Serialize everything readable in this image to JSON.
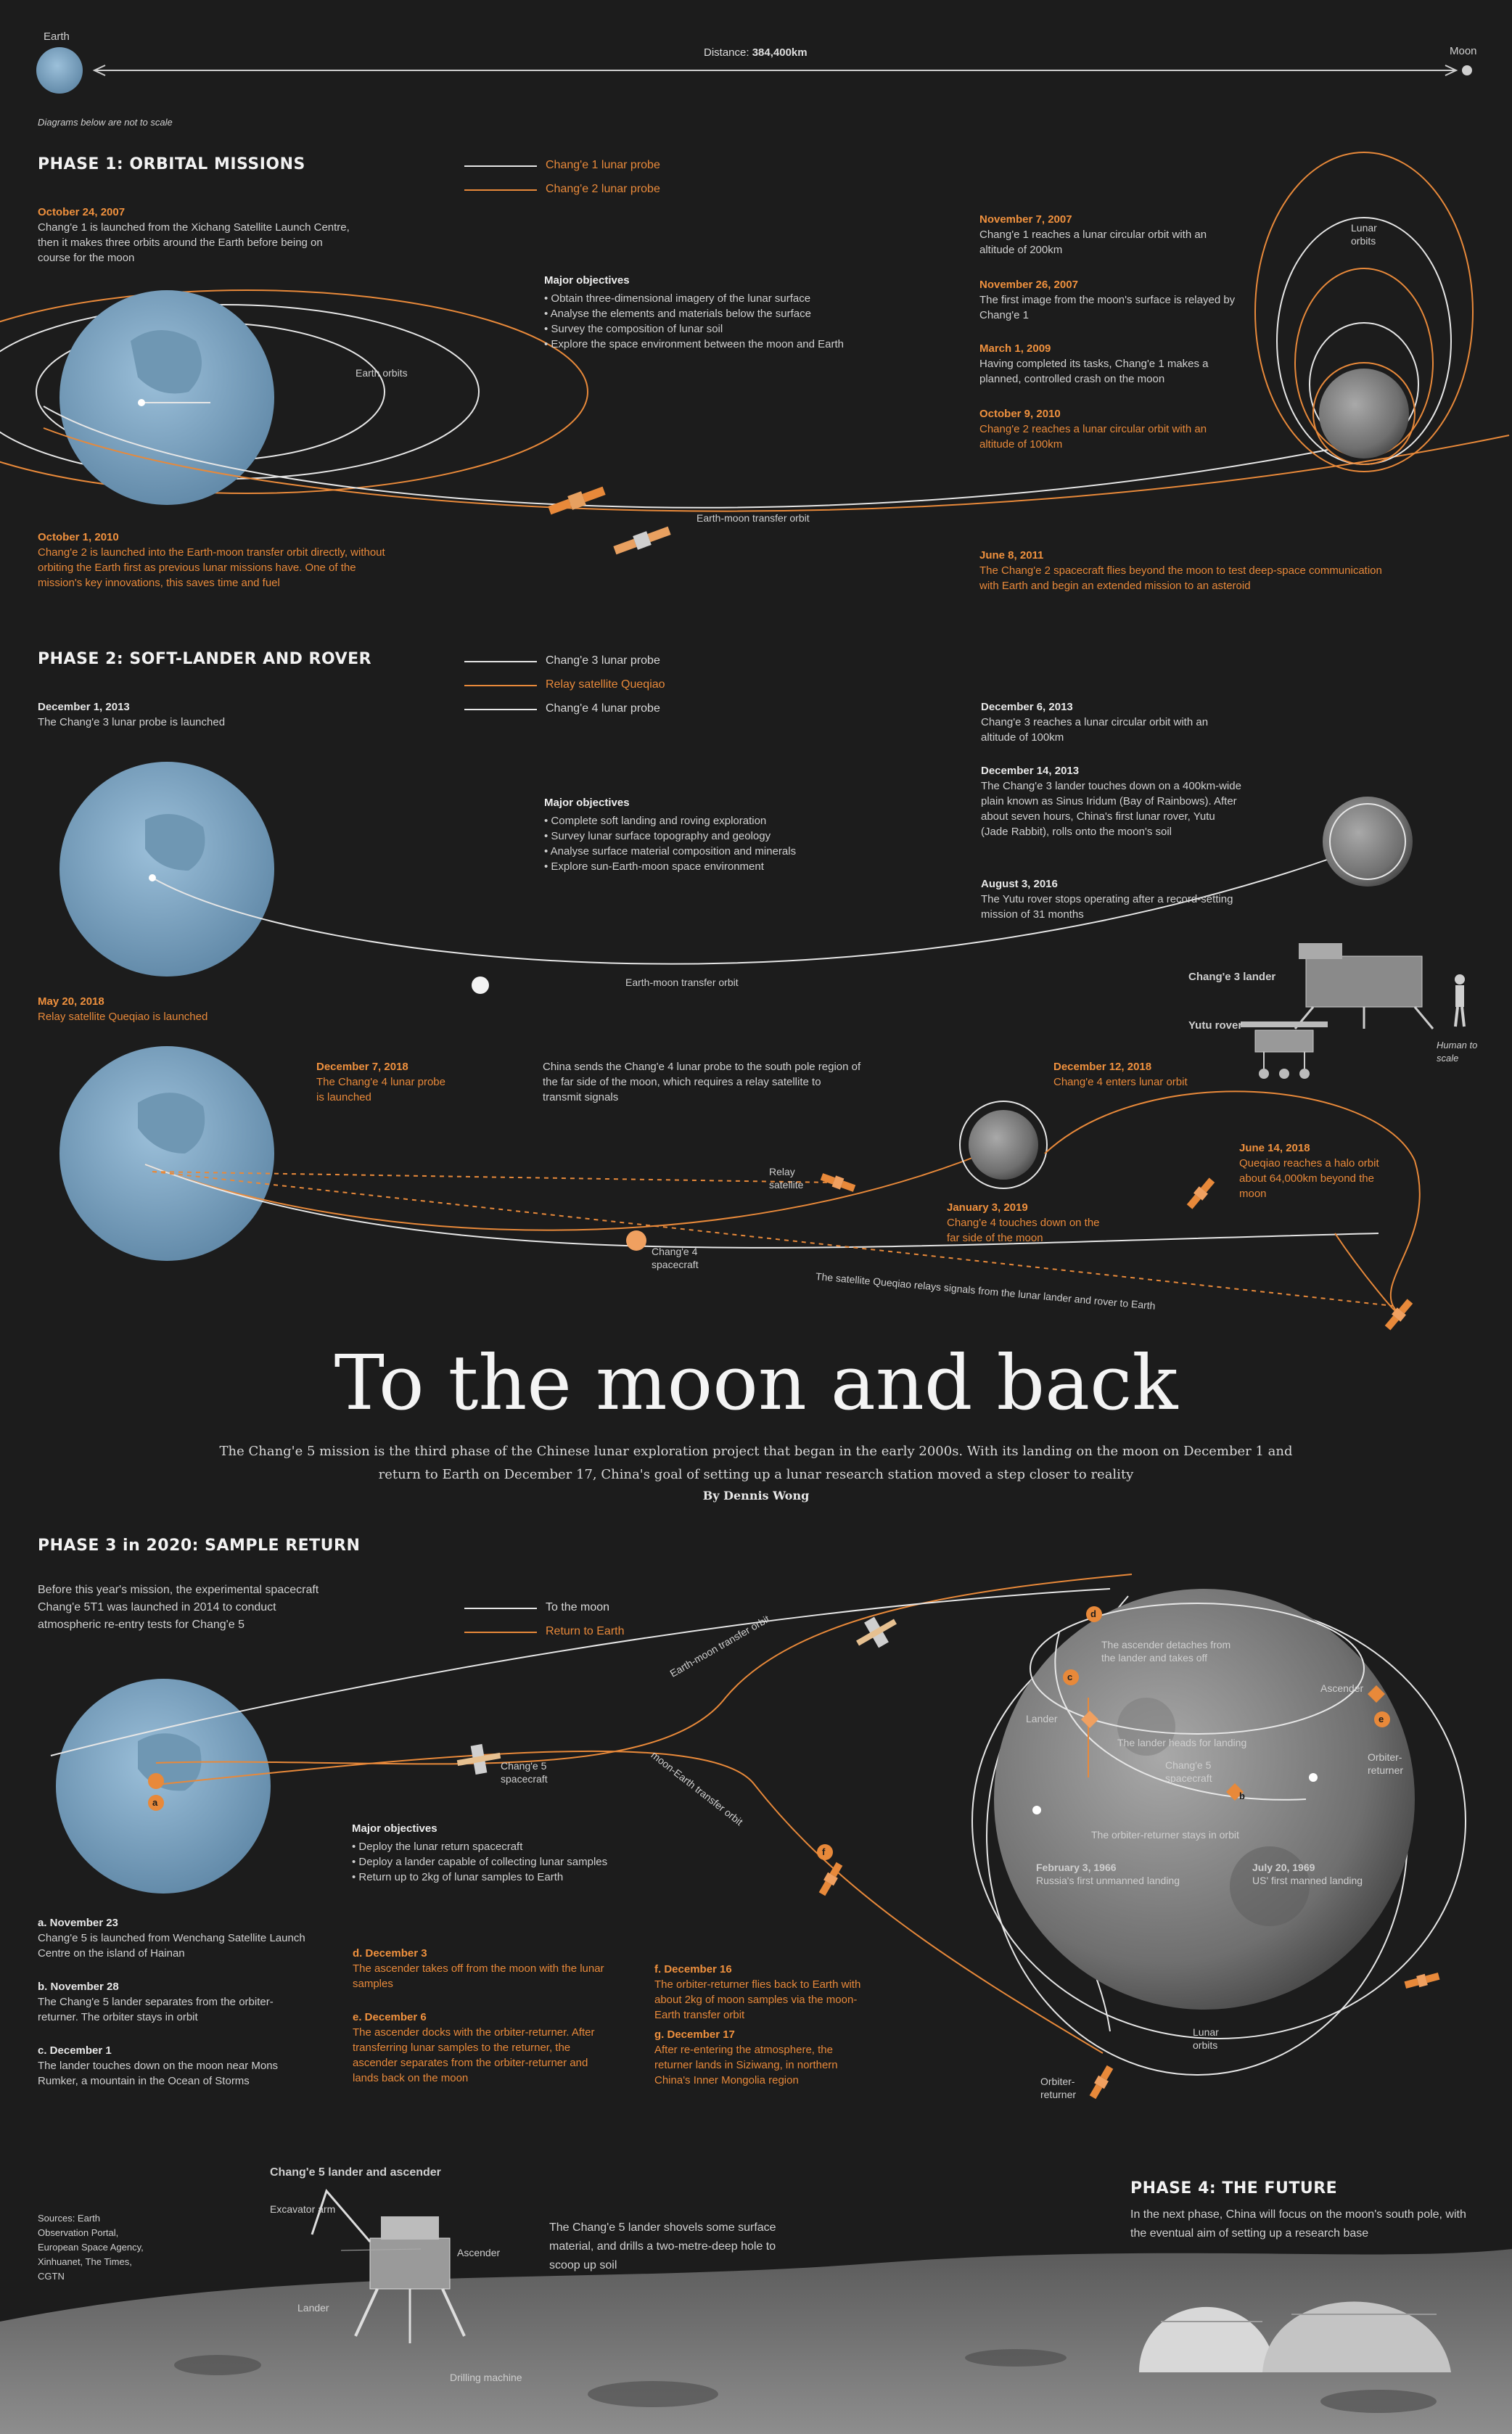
{
  "header": {
    "earth_label": "Earth",
    "moon_label": "Moon",
    "distance_label": "Distance:",
    "distance_value": "384,400km",
    "scale_note": "Diagrams below are not to scale"
  },
  "phase1": {
    "title": "PHASE 1: ORBITAL MISSIONS",
    "legend": [
      "Chang'e 1 lunar probe",
      "Chang'e 2 lunar probe"
    ],
    "objectives_title": "Major objectives",
    "objectives": [
      "Obtain three-dimensional imagery of the lunar surface",
      "Analyse the elements and materials below the surface",
      "Survey the composition of lunar soil",
      "Explore the space environment between the moon and Earth"
    ],
    "event_oct2007_date": "October 24, 2007",
    "event_oct2007_text": "Chang'e 1 is launched from the Xichang Satellite Launch Centre, then it makes three orbits around the Earth before being on course for the moon",
    "event_oct2010_date": "October 1, 2010",
    "event_oct2010_text": "Chang'e 2 is launched into the Earth-moon transfer orbit directly, without orbiting the Earth first as previous lunar missions have. One of the mission's key innovations, this saves time and fuel",
    "earth_orbits_label": "Earth orbits",
    "transfer_label": "Earth-moon transfer orbit",
    "lunar_orbits_label": "Lunar orbits",
    "timeline": [
      {
        "date": "November 7, 2007",
        "text": "Chang'e 1 reaches a lunar circular orbit with an altitude of 200km",
        "orange": false
      },
      {
        "date": "November 26, 2007",
        "text": "The first image from the moon's surface is relayed by Chang'e 1",
        "orange": false
      },
      {
        "date": "March 1, 2009",
        "text": "Having completed its tasks, Chang'e 1 makes a planned, controlled crash on the moon",
        "orange": false
      },
      {
        "date": "October 9, 2010",
        "text": "Chang'e 2 reaches a lunar circular orbit with an altitude of 100km",
        "orange": true
      },
      {
        "date": "June 8, 2011",
        "text": "The Chang'e 2 spacecraft flies beyond the moon to test deep-space communication with Earth and begin an extended mission to an asteroid",
        "orange": true
      }
    ]
  },
  "phase2": {
    "title": "PHASE 2: SOFT-LANDER AND ROVER",
    "legend": [
      "Chang'e 3 lunar probe",
      "Relay satellite Queqiao",
      "Chang'e 4 lunar probe"
    ],
    "objectives_title": "Major objectives",
    "objectives": [
      "Complete soft landing and roving exploration",
      "Survey lunar surface topography and geology",
      "Analyse surface material composition and minerals",
      "Explore sun-Earth-moon space environment"
    ],
    "event_dec2013_date": "December 1, 2013",
    "event_dec2013_text": "The Chang'e 3 lunar probe is launched",
    "timeline": [
      {
        "date": "December 6, 2013",
        "text": "Chang'e 3 reaches a lunar circular orbit with an altitude of 100km"
      },
      {
        "date": "December 14, 2013",
        "text": "The Chang'e 3 lander touches down on a 400km-wide plain known as Sinus Iridum (Bay of Rainbows). After about seven hours, China's first lunar rover, Yutu (Jade Rabbit), rolls onto the moon's soil"
      },
      {
        "date": "August 3, 2016",
        "text": "The Yutu rover stops operating after a record-setting mission of 31 months"
      }
    ],
    "transfer_label": "Earth-moon transfer orbit",
    "lander_label": "Chang'e 3 lander",
    "rover_label": "Yutu rover",
    "human_label": "Human to scale",
    "event_may2018_date": "May 20, 2018",
    "event_may2018_text": "Relay satellite Queqiao is launched",
    "event_dec7_date": "December 7, 2018",
    "event_dec7_text": "The Chang'e 4 lunar probe is launched",
    "change4_note": "China sends the Chang'e 4 lunar probe to the south pole region of the far side of the moon, which requires a relay satellite to transmit signals",
    "event_dec12_date": "December 12, 2018",
    "event_dec12_text": "Chang'e 4 enters lunar orbit",
    "event_jun14_date": "June 14, 2018",
    "event_jun14_text": "Queqiao reaches a halo orbit about 64,000km beyond the moon",
    "event_jan3_date": "January 3, 2019",
    "event_jan3_text": "Chang'e 4 touches down on the far side of the moon",
    "relay_label": "Relay satellite",
    "spacecraft_label": "Chang'e 4 spacecraft",
    "signal_label": "The satellite Queqiao relays signals from the lunar lander and rover to Earth"
  },
  "main": {
    "title": "To the moon and back",
    "intro": "The Chang'e 5 mission is the third phase of the Chinese lunar exploration project that began in the early 2000s. With its landing on the moon on December 1 and return to Earth on December 17, China's goal of setting up a lunar research station moved a step closer to reality",
    "byline": "By Dennis Wong"
  },
  "phase3": {
    "title": "PHASE 3 in 2020: SAMPLE RETURN",
    "intro": "Before this year's mission, the experimental spacecraft Chang'e 5T1 was launched in 2014 to conduct atmospheric re-entry tests for Chang'e 5",
    "legend": [
      "To the moon",
      "Return to Earth"
    ],
    "objectives_title": "Major objectives",
    "objectives": [
      "Deploy the lunar return spacecraft",
      "Deploy a lander capable of collecting lunar samples",
      "Return up to 2kg of lunar samples to Earth"
    ],
    "transfer_label": "Earth-moon transfer orbit",
    "return_label": "moon-Earth transfer orbit",
    "spacecraft_label": "Chang'e 5 spacecraft",
    "moon_labels": {
      "ascender_detaches": "The ascender detaches from the lander and takes off",
      "lander": "Lander",
      "ascender": "Ascender",
      "orbiter_returner": "Orbiter-returner",
      "lander_heads": "The lander heads for landing",
      "change5": "Chang'e 5 spacecraft",
      "orbiter_stays": "The orbiter-returner stays in orbit",
      "feb1966_date": "February 3, 1966",
      "feb1966_text": "Russia's first unmanned landing",
      "jul1969_date": "July 20, 1969",
      "jul1969_text": "US' first manned landing",
      "lunar_orbits": "Lunar orbits",
      "orbiter_returner2": "Orbiter-returner"
    },
    "steps": [
      {
        "date": "a. November 23",
        "text": "Chang'e 5 is launched from Wenchang Satellite Launch Centre on the island of Hainan",
        "orange": false
      },
      {
        "date": "b. November 28",
        "text": "The Chang'e 5 lander separates from the orbiter-returner. The orbiter stays in orbit",
        "orange": false
      },
      {
        "date": "c. December 1",
        "text": "The lander touches down on the moon near Mons Rumker, a mountain in the Ocean of Storms",
        "orange": false
      },
      {
        "date": "d. December 3",
        "text": "The ascender takes off from the moon with the lunar samples",
        "orange": true
      },
      {
        "date": "e. December 6",
        "text": "The ascender docks with the orbiter-returner. After transferring lunar samples to the returner, the ascender separates from the orbiter-returner and lands back on the moon",
        "orange": true
      },
      {
        "date": "f. December 16",
        "text": "The orbiter-returner flies back to Earth with about 2kg of moon samples via the moon-Earth transfer orbit",
        "orange": true
      },
      {
        "date": "g. December 17",
        "text": "After re-entering the atmosphere, the returner lands in Siziwang, in northern China's Inner Mongolia region",
        "orange": true
      }
    ],
    "markers": [
      "a",
      "b",
      "c",
      "d",
      "e",
      "f"
    ]
  },
  "bottom": {
    "sources": "Sources: Earth Observation Portal, European Space Agency, Xinhuanet, The Times, CGTN",
    "lander_title": "Chang'e 5 lander and ascender",
    "excavator": "Excavator arm",
    "ascender": "Ascender",
    "lander": "Lander",
    "drilling": "Drilling machine",
    "shovel_text": "The Chang'e 5 lander shovels some surface material, and drills a two-metre-deep hole to scoop up soil",
    "phase4_title": "PHASE 4: THE FUTURE",
    "phase4_text": "In the next phase, China will focus on the moon's south pole, with the eventual aim of setting up a research base"
  },
  "colors": {
    "background": "#1c1c1c",
    "orange": "#e8893a",
    "earth": "#7fa7c4",
    "white_line": "#e6e6e6"
  }
}
